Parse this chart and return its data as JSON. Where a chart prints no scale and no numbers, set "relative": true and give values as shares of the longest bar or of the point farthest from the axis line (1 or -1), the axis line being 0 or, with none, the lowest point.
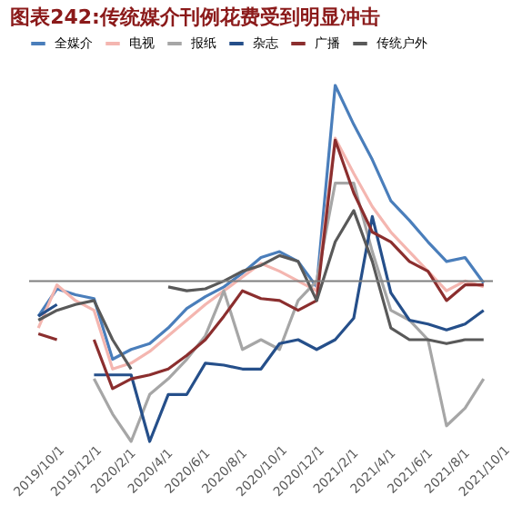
{
  "chart_data": {
    "type": "line",
    "title": "图表242:传统媒介刊例花费受到明显冲击",
    "relative": true,
    "legend": "top",
    "grid": false,
    "categories": [
      "2019/10/1",
      null,
      "2019/12/1",
      null,
      "2020/2/1",
      null,
      "2020/4/1",
      null,
      "2020/6/1",
      null,
      "2020/8/1",
      null,
      "2020/10/1",
      null,
      "2020/12/1",
      null,
      "2021/2/1",
      null,
      "2021/4/1",
      null,
      "2021/6/1",
      null,
      "2021/8/1",
      null,
      "2021/10/1"
    ],
    "series": [
      {
        "name": "全媒介",
        "color": "#4a7ebb",
        "values": [
          -0.18,
          -0.04,
          -0.07,
          -0.09,
          -0.4,
          -0.35,
          -0.32,
          -0.24,
          -0.14,
          -0.08,
          -0.03,
          0.04,
          0.12,
          0.15,
          0.1,
          -0.03,
          1.0,
          0.8,
          0.62,
          0.41,
          0.31,
          0.2,
          0.1,
          0.12,
          -0.01
        ]
      },
      {
        "name": "电视",
        "color": "#f4b6b0",
        "values": [
          -0.24,
          -0.02,
          -0.1,
          -0.15,
          -0.45,
          -0.42,
          -0.36,
          -0.28,
          -0.2,
          -0.12,
          -0.05,
          0.02,
          0.09,
          0.05,
          0.0,
          -0.05,
          0.73,
          0.55,
          0.38,
          0.25,
          0.15,
          0.05,
          -0.05,
          0.0,
          -0.03
        ]
      },
      {
        "name": "报纸",
        "color": "#a6a6a6",
        "values": [
          null,
          null,
          null,
          -0.5,
          -0.68,
          -0.82,
          -0.58,
          -0.5,
          -0.4,
          -0.28,
          -0.05,
          -0.35,
          -0.3,
          -0.35,
          -0.1,
          0.0,
          0.5,
          0.5,
          0.15,
          -0.15,
          -0.2,
          -0.3,
          -0.74,
          -0.65,
          -0.5
        ]
      },
      {
        "name": "杂志",
        "color": "#254f8a",
        "values": [
          -0.18,
          -0.12,
          null,
          -0.48,
          -0.48,
          -0.48,
          -0.82,
          -0.58,
          -0.58,
          -0.42,
          -0.43,
          -0.45,
          -0.45,
          -0.32,
          -0.3,
          -0.35,
          -0.3,
          -0.19,
          0.33,
          -0.06,
          -0.2,
          -0.22,
          -0.25,
          -0.22,
          -0.15
        ]
      },
      {
        "name": "广播",
        "color": "#8b2e2e",
        "values": [
          -0.27,
          -0.3,
          null,
          -0.3,
          -0.55,
          -0.5,
          -0.48,
          -0.45,
          -0.38,
          -0.3,
          -0.18,
          -0.05,
          -0.09,
          -0.1,
          -0.15,
          -0.1,
          0.72,
          0.45,
          0.25,
          0.2,
          0.1,
          0.05,
          -0.1,
          -0.02,
          -0.02
        ]
      },
      {
        "name": "传统户外",
        "color": "#595959",
        "values": [
          -0.2,
          -0.15,
          -0.12,
          -0.1,
          -0.3,
          -0.45,
          null,
          -0.03,
          -0.05,
          -0.04,
          0.0,
          0.05,
          0.08,
          0.13,
          0.1,
          -0.1,
          0.2,
          0.36,
          0.1,
          -0.24,
          -0.3,
          -0.3,
          -0.32,
          -0.3,
          -0.3
        ]
      }
    ]
  }
}
